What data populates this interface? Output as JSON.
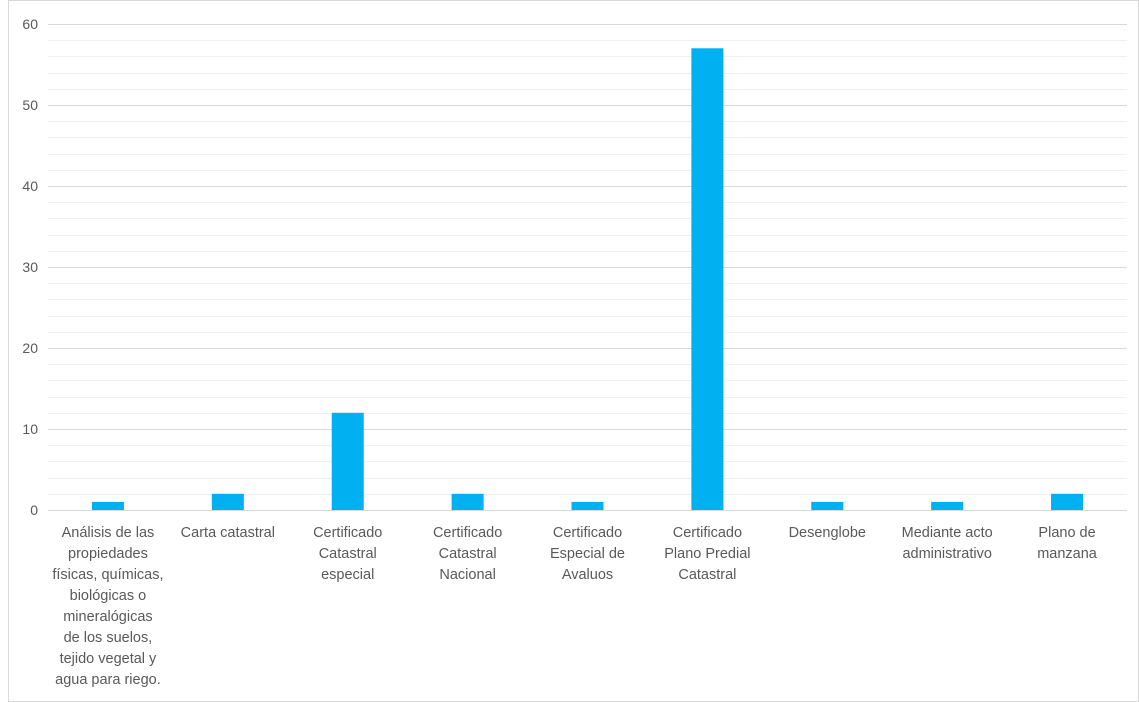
{
  "chart_data": {
    "type": "bar",
    "title": "",
    "xlabel": "",
    "ylabel": "",
    "ylim": [
      0,
      60
    ],
    "y_major_ticks": [
      0,
      10,
      20,
      30,
      40,
      50,
      60
    ],
    "y_minor_step": 2,
    "grid": true,
    "legend": "none",
    "bar_color": "#00b0f0",
    "categories": [
      "Análisis de las propiedades físicas, químicas, biológicas o mineralógicas de los suelos, tejido vegetal y agua para riego.",
      "Carta catastral",
      "Certificado Catastral especial",
      "Certificado Catastral Nacional",
      "Certificado Especial de Avaluos",
      "Certificado Plano Predial Catastral",
      "Desenglobe",
      "Mediante acto administrativo",
      "Plano de manzana"
    ],
    "category_label_lines": [
      [
        "Análisis de las",
        "propiedades",
        "físicas, químicas,",
        "biológicas o",
        "mineralógicas",
        "de los suelos,",
        "tejido vegetal y",
        "agua para riego."
      ],
      [
        "Carta catastral"
      ],
      [
        "Certificado",
        "Catastral",
        "especial"
      ],
      [
        "Certificado",
        "Catastral",
        "Nacional"
      ],
      [
        "Certificado",
        "Especial de",
        "Avaluos"
      ],
      [
        "Certificado",
        "Plano Predial",
        "Catastral"
      ],
      [
        "Desenglobe"
      ],
      [
        "Mediante acto",
        "administrativo"
      ],
      [
        "Plano de",
        "manzana"
      ]
    ],
    "values": [
      1,
      2,
      12,
      2,
      1,
      57,
      1,
      1,
      2
    ]
  }
}
